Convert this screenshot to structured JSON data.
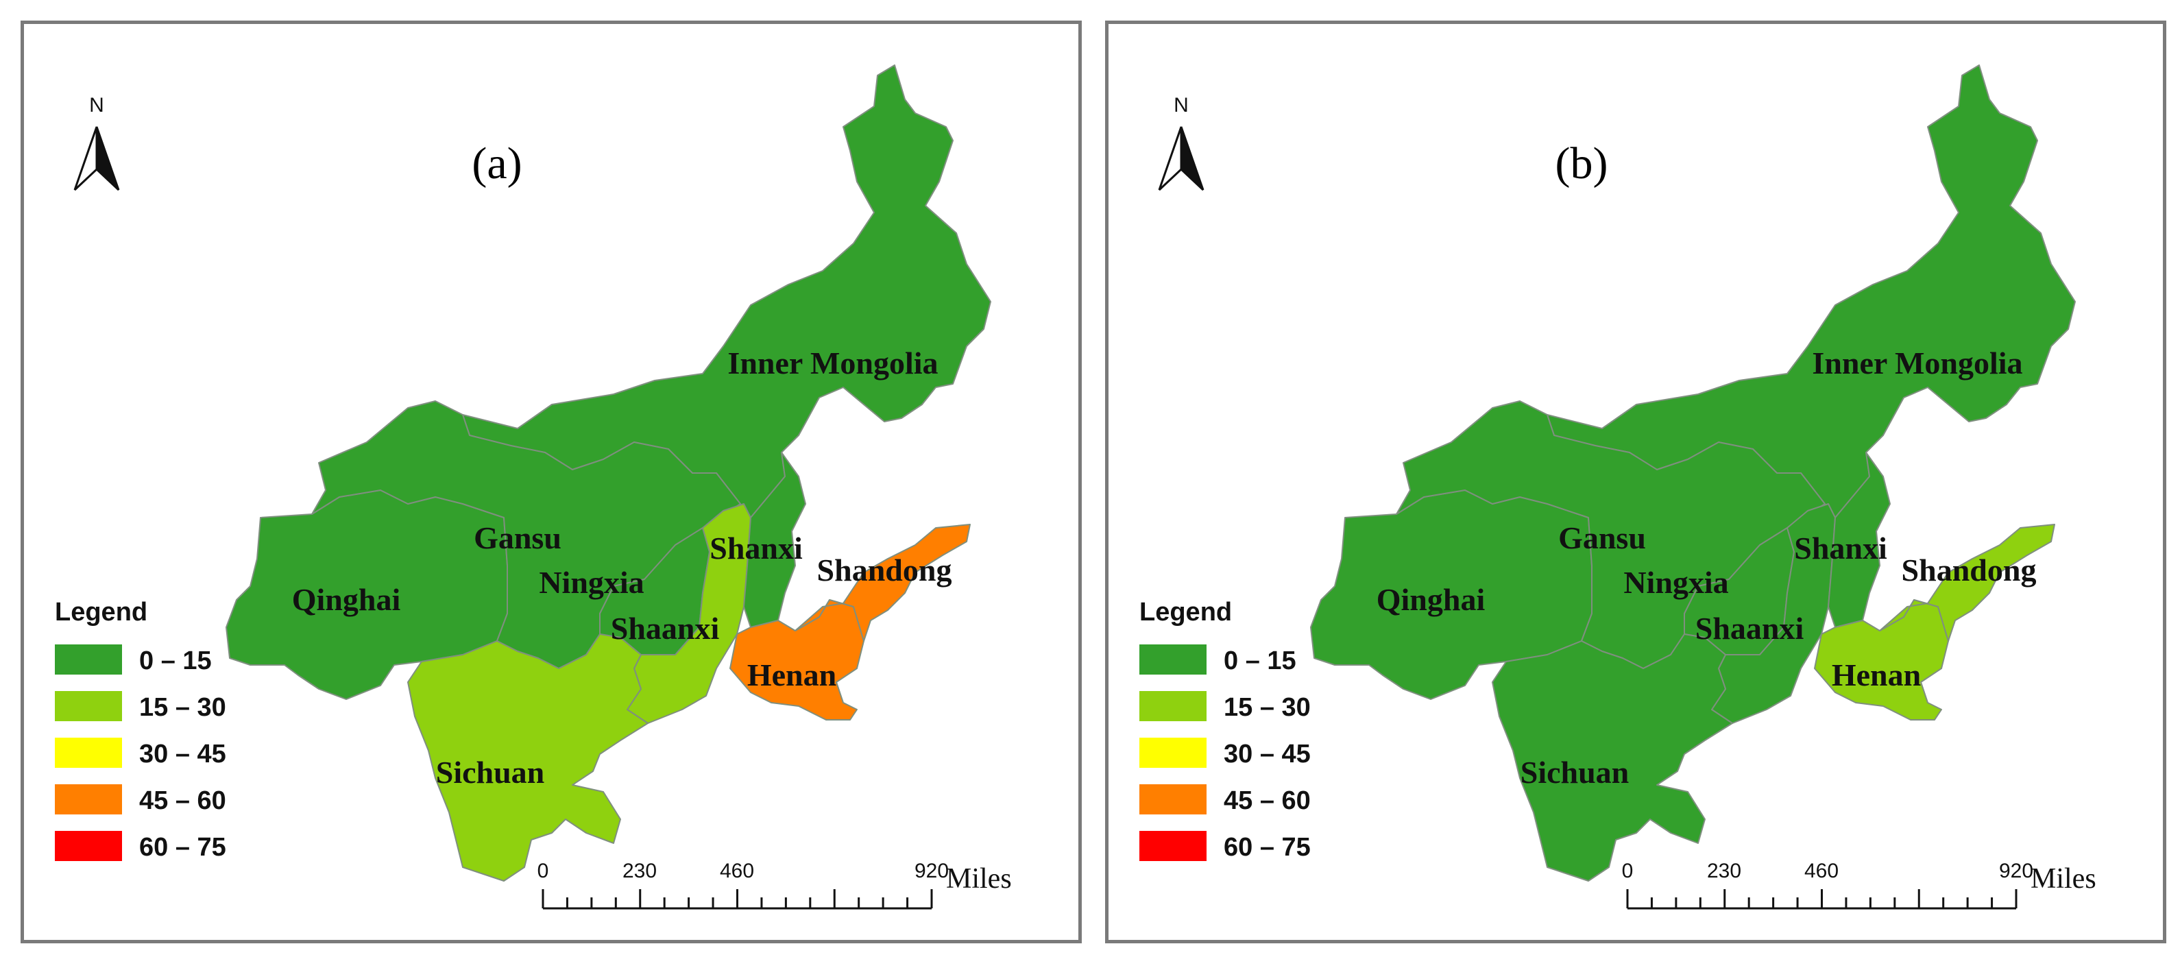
{
  "legend": {
    "title": "Legend",
    "classes": [
      {
        "label": "0 – 15",
        "color": "#33a02c"
      },
      {
        "label": "15 – 30",
        "color": "#8fd10f"
      },
      {
        "label": "30 – 45",
        "color": "#ffff00"
      },
      {
        "label": "45 – 60",
        "color": "#ff7f00"
      },
      {
        "label": "60 – 75",
        "color": "#ff0000"
      }
    ]
  },
  "north_label": "N",
  "scale_bar": {
    "ticks": [
      "0",
      "230",
      "460",
      "920"
    ],
    "unit": "Miles"
  },
  "panels": [
    {
      "title": "(a)",
      "class_by_province": {
        "Inner Mongolia": 0,
        "Gansu": 0,
        "Qinghai": 0,
        "Ningxia": 0,
        "Shanxi": 0,
        "Shaanxi": 1,
        "Sichuan": 1,
        "Henan": 3,
        "Shandong": 3
      }
    },
    {
      "title": "(b)",
      "class_by_province": {
        "Inner Mongolia": 0,
        "Gansu": 0,
        "Qinghai": 0,
        "Ningxia": 0,
        "Shanxi": 0,
        "Shaanxi": 0,
        "Sichuan": 0,
        "Henan": 1,
        "Shandong": 1
      }
    }
  ],
  "province_labels": {
    "Inner Mongolia": "Inner Mongolia",
    "Gansu": "Gansu",
    "Qinghai": "Qinghai",
    "Ningxia": "Ningxia",
    "Shanxi": "Shanxi",
    "Shaanxi": "Shaanxi",
    "Sichuan": "Sichuan",
    "Henan": "Henan",
    "Shandong": "Shandong"
  }
}
